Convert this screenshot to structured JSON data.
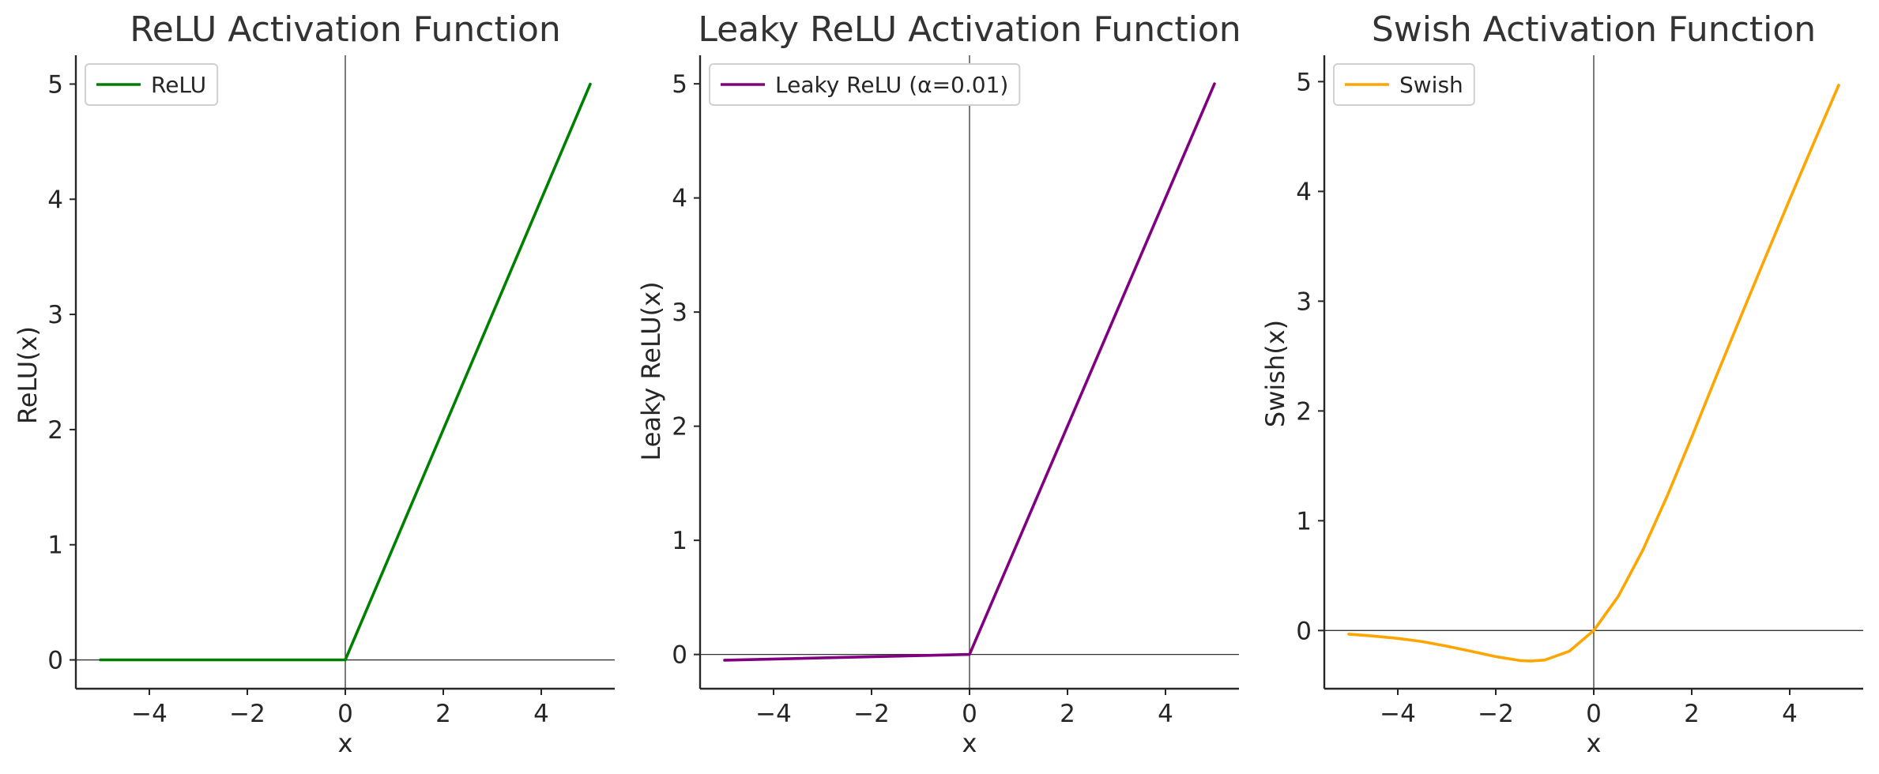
{
  "chart_data": [
    {
      "type": "line",
      "title": "ReLU Activation Function",
      "xlabel": "x",
      "ylabel": "ReLU(x)",
      "xlim": [
        -5.5,
        5.5
      ],
      "ylim": [
        -0.25,
        5.25
      ],
      "xticks": [
        -4,
        -2,
        0,
        2,
        4
      ],
      "yticks": [
        0,
        1,
        2,
        3,
        4,
        5
      ],
      "xtick_labels": [
        "−4",
        "−2",
        "0",
        "2",
        "4"
      ],
      "ytick_labels": [
        "0",
        "1",
        "2",
        "3",
        "4",
        "5"
      ],
      "legend": "top-left",
      "series": [
        {
          "name": "ReLU",
          "color": "#008000",
          "x": [
            -5,
            0,
            5
          ],
          "y": [
            0,
            0,
            5
          ]
        }
      ]
    },
    {
      "type": "line",
      "title": "Leaky ReLU Activation Function",
      "xlabel": "x",
      "ylabel": "Leaky ReLU(x)",
      "xlim": [
        -5.5,
        5.5
      ],
      "ylim": [
        -0.3,
        5.25
      ],
      "xticks": [
        -4,
        -2,
        0,
        2,
        4
      ],
      "yticks": [
        0,
        1,
        2,
        3,
        4,
        5
      ],
      "xtick_labels": [
        "−4",
        "−2",
        "0",
        "2",
        "4"
      ],
      "ytick_labels": [
        "0",
        "1",
        "2",
        "3",
        "4",
        "5"
      ],
      "legend": "top-left",
      "series": [
        {
          "name": "Leaky ReLU (α=0.01)",
          "color": "#800080",
          "x": [
            -5,
            0,
            5
          ],
          "y": [
            -0.05,
            0,
            5
          ]
        }
      ]
    },
    {
      "type": "line",
      "title": "Swish Activation Function",
      "xlabel": "x",
      "ylabel": "Swish(x)",
      "xlim": [
        -5.5,
        5.5
      ],
      "ylim": [
        -0.53,
        5.24
      ],
      "xticks": [
        -4,
        -2,
        0,
        2,
        4
      ],
      "yticks": [
        0,
        1,
        2,
        3,
        4,
        5
      ],
      "xtick_labels": [
        "−4",
        "−2",
        "0",
        "2",
        "4"
      ],
      "ytick_labels": [
        "0",
        "1",
        "2",
        "3",
        "4",
        "5"
      ],
      "legend": "top-left",
      "series": [
        {
          "name": "Swish",
          "color": "#FFA500",
          "x": [
            -5,
            -4.5,
            -4,
            -3.5,
            -3,
            -2.5,
            -2,
            -1.5,
            -1.28,
            -1,
            -0.5,
            0,
            0.5,
            1,
            1.5,
            2,
            2.5,
            3,
            3.5,
            4,
            4.5,
            5
          ],
          "y": [
            -0.033,
            -0.05,
            -0.072,
            -0.101,
            -0.142,
            -0.189,
            -0.238,
            -0.274,
            -0.278,
            -0.269,
            -0.189,
            0,
            0.311,
            0.731,
            1.226,
            1.762,
            2.315,
            2.858,
            3.395,
            3.928,
            4.451,
            4.967
          ]
        }
      ]
    }
  ]
}
